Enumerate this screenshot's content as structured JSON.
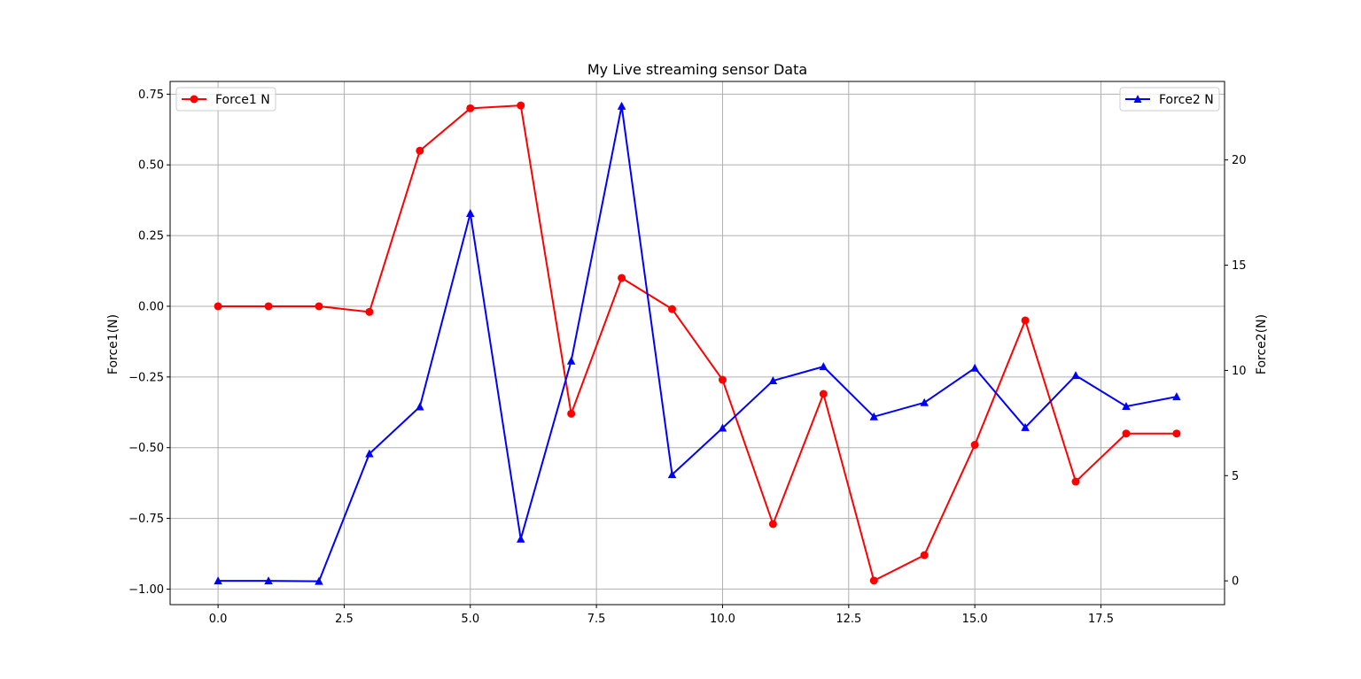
{
  "chart_data": {
    "type": "line",
    "title": "My Live streaming sensor Data",
    "xlabel": "",
    "ylabel_left": "Force1(N)",
    "ylabel_right": "Force2(N)",
    "xlim": [
      -0.95,
      19.95
    ],
    "ylim_left": [
      -1.055,
      0.795
    ],
    "ylim_right": [
      -1.13,
      23.73
    ],
    "x_ticks": [
      0.0,
      2.5,
      5.0,
      7.5,
      10.0,
      12.5,
      15.0,
      17.5
    ],
    "x_tick_labels": [
      "0.0",
      "2.5",
      "5.0",
      "7.5",
      "10.0",
      "12.5",
      "15.0",
      "17.5"
    ],
    "y_left_ticks": [
      -1.0,
      -0.75,
      -0.5,
      -0.25,
      0.0,
      0.25,
      0.5,
      0.75
    ],
    "y_left_tick_labels": [
      "−1.00",
      "−0.75",
      "−0.50",
      "−0.25",
      "0.00",
      "0.25",
      "0.50",
      "0.75"
    ],
    "y_right_ticks": [
      0,
      5,
      10,
      15,
      20
    ],
    "y_right_tick_labels": [
      "0",
      "5",
      "10",
      "15",
      "20"
    ],
    "grid": true,
    "x": [
      0,
      1,
      2,
      3,
      4,
      5,
      6,
      7,
      8,
      9,
      10,
      11,
      12,
      13,
      14,
      15,
      16,
      17,
      18,
      19
    ],
    "series": [
      {
        "name": "Force1 N",
        "axis": "left",
        "color": "#ff0000",
        "marker": "circle",
        "legend_position": "upper-left",
        "values": [
          0.0,
          0.0,
          0.0,
          -0.02,
          0.55,
          0.7,
          0.71,
          -0.38,
          0.1,
          -0.01,
          -0.26,
          -0.77,
          -0.31,
          -0.97,
          -0.88,
          -0.49,
          -0.05,
          -0.62,
          -0.45,
          -0.45
        ]
      },
      {
        "name": "Force2 N",
        "axis": "right",
        "color": "#0000ff",
        "marker": "triangle",
        "legend_position": "upper-right",
        "values": [
          0.0,
          0.0,
          -0.02,
          6.04,
          8.27,
          17.46,
          1.99,
          10.45,
          22.56,
          5.05,
          7.26,
          9.51,
          10.18,
          7.8,
          8.47,
          10.11,
          7.29,
          9.76,
          8.29,
          8.75
        ]
      }
    ]
  }
}
